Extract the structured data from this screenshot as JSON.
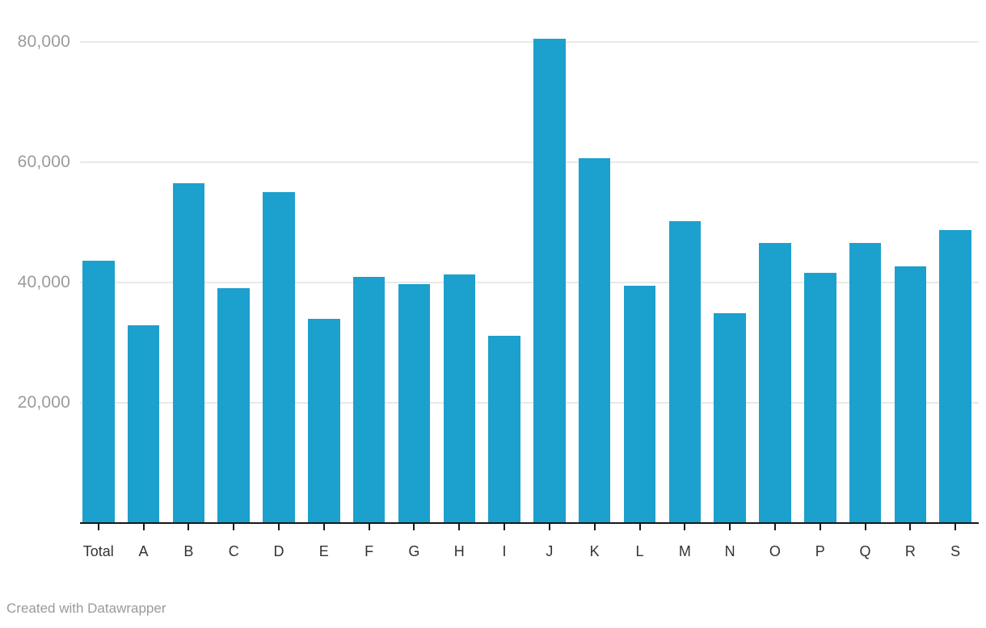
{
  "chart_data": {
    "type": "bar",
    "title": "",
    "xlabel": "",
    "ylabel": "",
    "categories": [
      "Total",
      "A",
      "B",
      "C",
      "D",
      "E",
      "F",
      "G",
      "H",
      "I",
      "J",
      "K",
      "L",
      "M",
      "N",
      "O",
      "P",
      "Q",
      "R",
      "S"
    ],
    "values": [
      43600,
      32900,
      56500,
      39100,
      55100,
      34000,
      41000,
      39700,
      41300,
      31200,
      80600,
      60700,
      39500,
      50200,
      34900,
      46600,
      41600,
      46600,
      42700,
      48700
    ],
    "ylim": [
      0,
      87000
    ],
    "yticks": [
      {
        "value": 20000,
        "label": "20,000"
      },
      {
        "value": 40000,
        "label": "40,000"
      },
      {
        "value": 60000,
        "label": "60,000"
      },
      {
        "value": 80000,
        "label": "80,000"
      }
    ],
    "grid": "horizontal",
    "legend": "none",
    "bar_color": "#1ca0ce"
  },
  "footer": {
    "credit": "Created with Datawrapper"
  },
  "colors": {
    "bar": "#1ca0ce",
    "gridline": "#e9e9e9",
    "axis": "#181818",
    "tick": "#181818",
    "y_tick_label": "#9b9b9b",
    "x_tick_label": "#333333",
    "footer_text": "#9a9a9a",
    "background": "#ffffff"
  }
}
